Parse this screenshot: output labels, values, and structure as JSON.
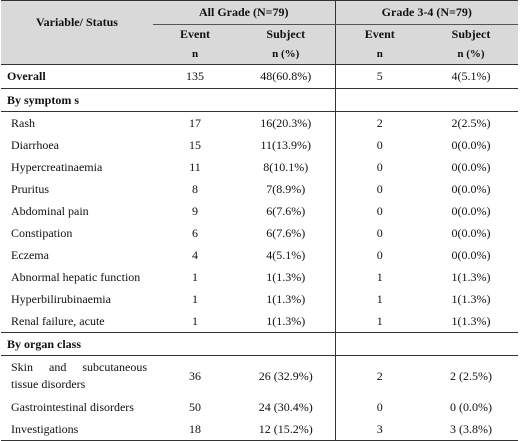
{
  "header": {
    "variable_status": "Variable/ Status",
    "group_all": "All Grade (N=79)",
    "group_g34": "Grade 3-4 (N=79)",
    "col_event": "Event",
    "col_subject": "Subject",
    "unit_n": "n",
    "unit_npct": "n (%)"
  },
  "overall": {
    "label": "Overall",
    "all_event": "135",
    "all_subject": "48(60.8%)",
    "g34_event": "5",
    "g34_subject": "4(5.1%)"
  },
  "sections": [
    {
      "title": "By symptom s",
      "rows": [
        {
          "label": "Rash",
          "all_event": "17",
          "all_subject": "16(20.3%)",
          "g34_event": "2",
          "g34_subject": "2(2.5%)"
        },
        {
          "label": "Diarrhoea",
          "all_event": "15",
          "all_subject": "11(13.9%)",
          "g34_event": "0",
          "g34_subject": "0(0.0%)"
        },
        {
          "label": "Hypercreatinaemia",
          "all_event": "11",
          "all_subject": "8(10.1%)",
          "g34_event": "0",
          "g34_subject": "0(0.0%)"
        },
        {
          "label": "Pruritus",
          "all_event": "8",
          "all_subject": "7(8.9%)",
          "g34_event": "0",
          "g34_subject": "0(0.0%)"
        },
        {
          "label": "Abdominal pain",
          "all_event": "9",
          "all_subject": "6(7.6%)",
          "g34_event": "0",
          "g34_subject": "0(0.0%)"
        },
        {
          "label": "Constipation",
          "all_event": "6",
          "all_subject": "6(7.6%)",
          "g34_event": "0",
          "g34_subject": "0(0.0%)"
        },
        {
          "label": "Eczema",
          "all_event": "4",
          "all_subject": "4(5.1%)",
          "g34_event": "0",
          "g34_subject": "0(0.0%)"
        },
        {
          "label": "Abnormal hepatic function",
          "all_event": "1",
          "all_subject": "1(1.3%)",
          "g34_event": "1",
          "g34_subject": "1(1.3%)"
        },
        {
          "label": "Hyperbilirubinaemia",
          "all_event": "1",
          "all_subject": "1(1.3%)",
          "g34_event": "1",
          "g34_subject": "1(1.3%)"
        },
        {
          "label": "Renal failure, acute",
          "all_event": "1",
          "all_subject": "1(1.3%)",
          "g34_event": "1",
          "g34_subject": "1(1.3%)"
        }
      ]
    },
    {
      "title": "By organ class",
      "rows": [
        {
          "label": "Skin and subcutaneous tissue disorders",
          "all_event": "36",
          "all_subject": "26 (32.9%)",
          "g34_event": "2",
          "g34_subject": "2 (2.5%)"
        },
        {
          "label": "Gastrointestinal disorders",
          "all_event": "50",
          "all_subject": "24 (30.4%)",
          "g34_event": "0",
          "g34_subject": "0 (0.0%)"
        },
        {
          "label": "Investigations",
          "all_event": "18",
          "all_subject": "12 (15.2%)",
          "g34_event": "3",
          "g34_subject": "3 (3.8%)"
        }
      ]
    }
  ]
}
